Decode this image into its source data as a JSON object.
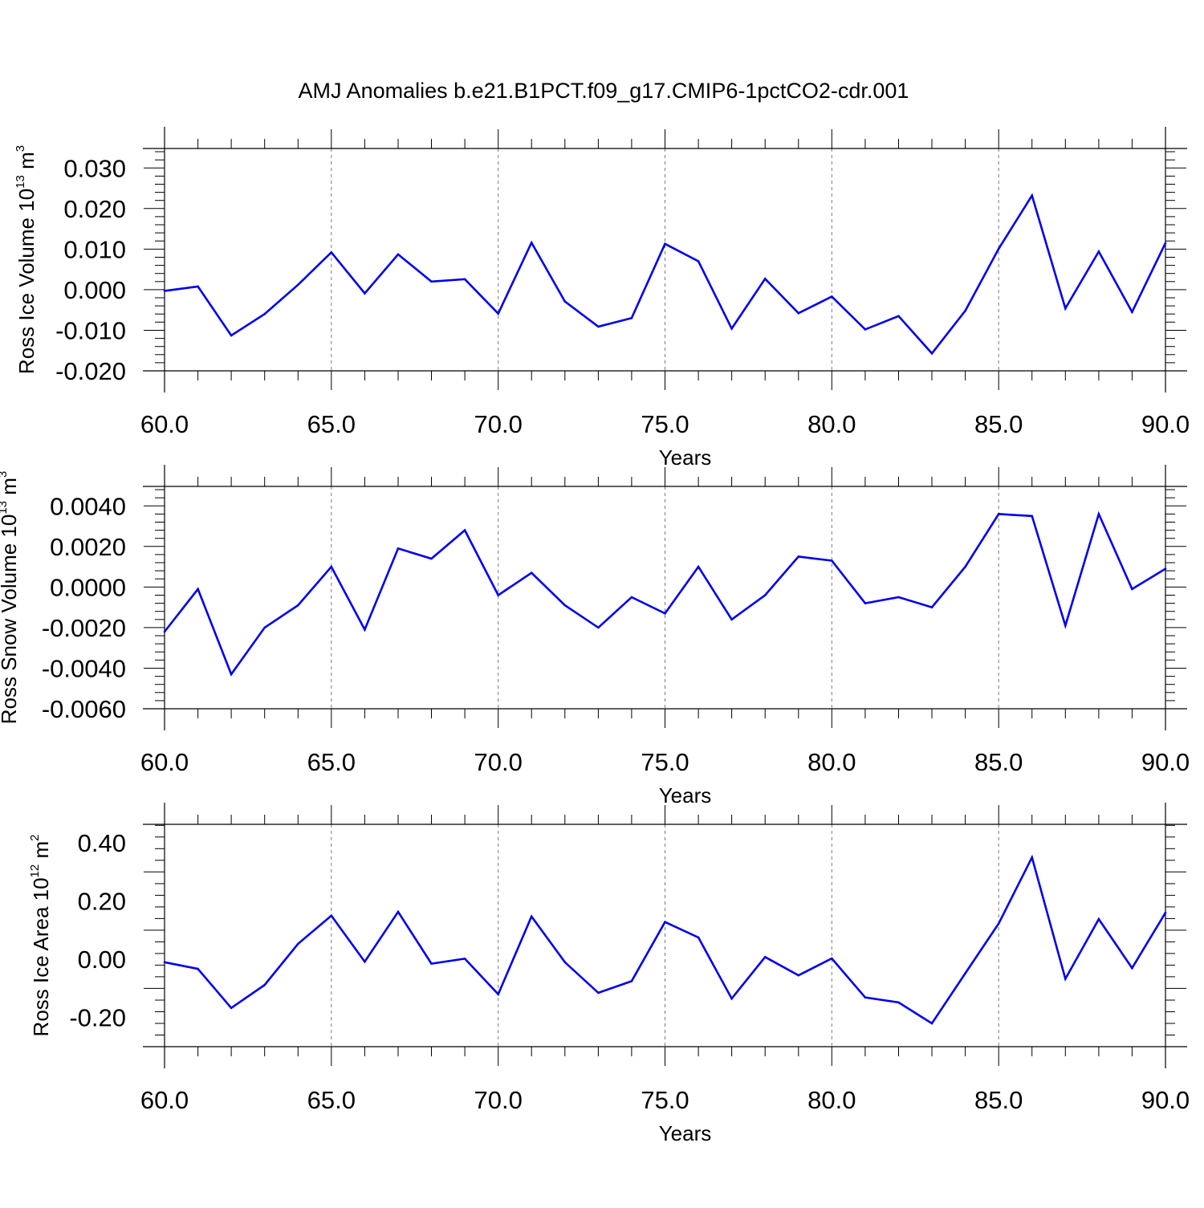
{
  "title": "AMJ Anomalies b.e21.B1PCT.f09_g17.CMIP6-1pctCO2-cdr.001",
  "colors": {
    "line": "#0000ee",
    "axis": "#000000",
    "grid": "#7a7a7a"
  },
  "chart_data": [
    {
      "type": "line",
      "ylabel_base": "Ross Ice Volume 10",
      "ylabel_exp": "13",
      "ylabel_unit": " m",
      "ylabel_unit_exp": "3",
      "xlabel": "Years",
      "xlim": [
        60,
        90
      ],
      "ylim": [
        -0.02,
        0.0348
      ],
      "xticks": [
        60,
        65,
        70,
        75,
        80,
        85,
        90
      ],
      "xtick_labels": [
        "60.0",
        "65.0",
        "70.0",
        "75.0",
        "80.0",
        "85.0",
        "90.0"
      ],
      "yticks": [
        -0.02,
        -0.01,
        0.0,
        0.01,
        0.02,
        0.03
      ],
      "ytick_labels": [
        "-0.020",
        "-0.010",
        "0.000",
        "0.010",
        "0.020",
        "0.030"
      ],
      "grid_x": true,
      "x": [
        60,
        61,
        62,
        63,
        64,
        65,
        66,
        67,
        68,
        69,
        70,
        71,
        72,
        73,
        74,
        75,
        76,
        77,
        78,
        79,
        80,
        81,
        82,
        83,
        84,
        85,
        86,
        87,
        88,
        89,
        90
      ],
      "values": [
        -0.0003,
        0.0008,
        -0.0113,
        -0.006,
        0.0012,
        0.0092,
        -0.0009,
        0.0087,
        0.002,
        0.0026,
        -0.0059,
        0.0116,
        -0.0029,
        -0.0091,
        -0.007,
        0.0113,
        0.007,
        -0.0096,
        0.0027,
        -0.0058,
        -0.0017,
        -0.0098,
        -0.0065,
        -0.0157,
        -0.0052,
        0.0101,
        0.0232,
        -0.0046,
        0.0094,
        -0.0055,
        0.0115
      ]
    },
    {
      "type": "line",
      "ylabel_base": "Ross Snow Volume 10",
      "ylabel_exp": "13",
      "ylabel_unit": " m",
      "ylabel_unit_exp": "3",
      "xlabel": "Years",
      "xlim": [
        60,
        90
      ],
      "ylim": [
        -0.006,
        0.00496
      ],
      "xticks": [
        60,
        65,
        70,
        75,
        80,
        85,
        90
      ],
      "xtick_labels": [
        "60.0",
        "65.0",
        "70.0",
        "75.0",
        "80.0",
        "85.0",
        "90.0"
      ],
      "yticks": [
        -0.006,
        -0.004,
        -0.002,
        0.0,
        0.002,
        0.004
      ],
      "ytick_labels": [
        "-0.0060",
        "-0.0040",
        "-0.0020",
        "0.0000",
        "0.0020",
        "0.0040"
      ],
      "grid_x": true,
      "x": [
        60,
        61,
        62,
        63,
        64,
        65,
        66,
        67,
        68,
        69,
        70,
        71,
        72,
        73,
        74,
        75,
        76,
        77,
        78,
        79,
        80,
        81,
        82,
        83,
        84,
        85,
        86,
        87,
        88,
        89,
        90
      ],
      "values": [
        -0.0022,
        -0.0001,
        -0.0043,
        -0.002,
        -0.0009,
        0.001,
        -0.0021,
        0.0019,
        0.0014,
        0.0028,
        -0.0004,
        0.0007,
        -0.0009,
        -0.002,
        -0.0005,
        -0.0013,
        0.001,
        -0.0016,
        -0.0004,
        0.0015,
        0.0013,
        -0.0008,
        -0.0005,
        -0.001,
        0.001,
        0.0036,
        0.0035,
        -0.0019,
        0.0036,
        -0.0001,
        0.0009
      ]
    },
    {
      "type": "line",
      "ylabel_base": "Ross Ice Area 10",
      "ylabel_exp": "12",
      "ylabel_unit": " m",
      "ylabel_unit_exp": "2",
      "xlabel": "Years",
      "xlim": [
        60,
        90
      ],
      "ylim": [
        -0.3,
        0.4636
      ],
      "xticks": [
        60,
        65,
        70,
        75,
        80,
        85,
        90
      ],
      "xtick_labels": [
        "60.0",
        "65.0",
        "70.0",
        "75.0",
        "80.0",
        "85.0",
        "90.0"
      ],
      "yticks": [
        -0.2,
        0.0,
        0.2,
        0.4
      ],
      "ytick_labels": [
        "-0.20",
        "0.00",
        "0.20",
        "0.40"
      ],
      "grid_x": true,
      "x": [
        60,
        61,
        62,
        63,
        64,
        65,
        66,
        67,
        68,
        69,
        70,
        71,
        72,
        73,
        74,
        75,
        76,
        77,
        78,
        79,
        80,
        81,
        82,
        83,
        84,
        85,
        86,
        87,
        88,
        89,
        90
      ],
      "values": [
        -0.01,
        -0.033,
        -0.167,
        -0.088,
        0.053,
        0.15,
        -0.008,
        0.163,
        -0.015,
        0.002,
        -0.12,
        0.147,
        -0.01,
        -0.115,
        -0.075,
        0.128,
        0.075,
        -0.135,
        0.008,
        -0.055,
        0.003,
        -0.131,
        -0.148,
        -0.22,
        -0.048,
        0.123,
        0.35,
        -0.067,
        0.138,
        -0.03,
        0.16
      ]
    }
  ]
}
